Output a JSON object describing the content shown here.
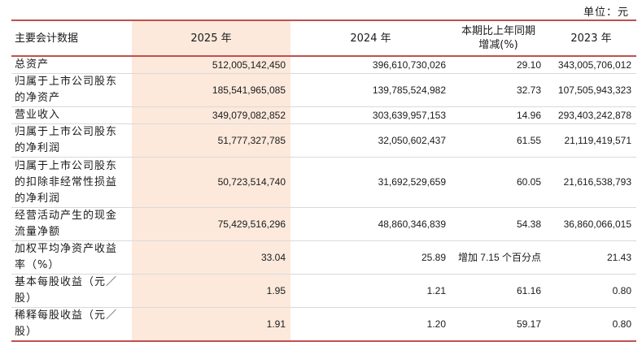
{
  "unit": "单位：元",
  "header": {
    "col1": "主要会计数据",
    "col2": "2025 年",
    "col3": "2024 年",
    "col4_line1": "本期比上年同期",
    "col4_line2": "增减(%)",
    "col5": "2023 年"
  },
  "rows": [
    {
      "label": "总资产",
      "v2025": "512,005,142,450",
      "v2024": "396,610,730,026",
      "change": "29.10",
      "v2023": "343,005,706,012"
    },
    {
      "label": "归属于上市公司股东的净资产",
      "v2025": "185,541,965,085",
      "v2024": "139,785,524,982",
      "change": "32.73",
      "v2023": "107,505,943,323"
    },
    {
      "label": "营业收入",
      "v2025": "349,079,082,852",
      "v2024": "303,639,957,153",
      "change": "14.96",
      "v2023": "293,403,242,878"
    },
    {
      "label": "归属于上市公司股东的净利润",
      "v2025": "51,777,327,785",
      "v2024": "32,050,602,437",
      "change": "61.55",
      "v2023": "21,119,419,571"
    },
    {
      "label": "归属于上市公司股东的扣除非经常性损益的净利润",
      "v2025": "50,723,514,740",
      "v2024": "31,692,529,659",
      "change": "60.05",
      "v2023": "21,616,538,793"
    },
    {
      "label": "经营活动产生的现金流量净额",
      "v2025": "75,429,516,296",
      "v2024": "48,860,346,839",
      "change": "54.38",
      "v2023": "36,860,066,015"
    },
    {
      "label": "加权平均净资产收益率（%）",
      "v2025": "33.04",
      "v2024": "25.89",
      "change": "增加 7.15 个百分点",
      "v2023": "21.43"
    },
    {
      "label": "基本每股收益（元／股）",
      "v2025": "1.95",
      "v2024": "1.21",
      "change": "61.16",
      "v2023": "0.80"
    },
    {
      "label": "稀释每股收益（元／股）",
      "v2025": "1.91",
      "v2024": "1.20",
      "change": "59.17",
      "v2023": "0.80"
    }
  ]
}
